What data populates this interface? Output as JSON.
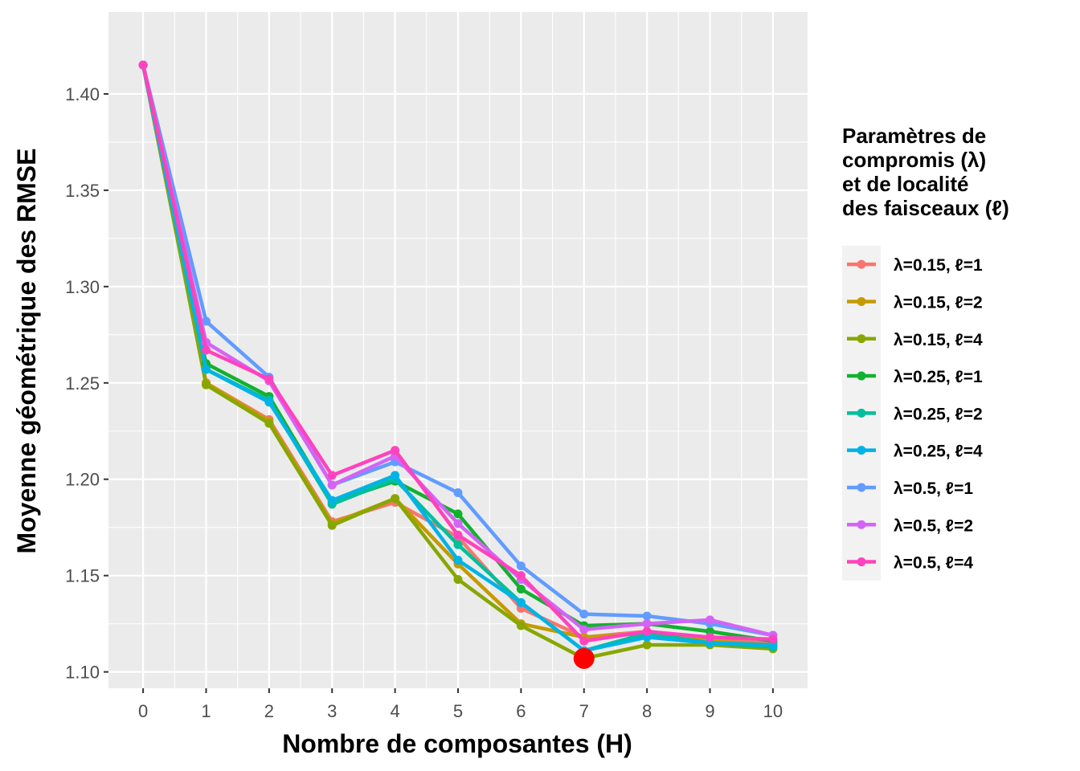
{
  "chart_data": {
    "type": "line",
    "xlabel": "Nombre de composantes (H)",
    "ylabel": "Moyenne géométrique des RMSE",
    "x": [
      0,
      1,
      2,
      3,
      4,
      5,
      6,
      7,
      8,
      9,
      10
    ],
    "xlim": [
      -0.55,
      10.55
    ],
    "ylim": [
      1.0915,
      1.4425
    ],
    "yticks": [
      1.1,
      1.15,
      1.2,
      1.25,
      1.3,
      1.35,
      1.4
    ],
    "ytick_labels": [
      "1.10",
      "1.15",
      "1.20",
      "1.25",
      "1.30",
      "1.35",
      "1.40"
    ],
    "xtick_labels": [
      "0",
      "1",
      "2",
      "3",
      "4",
      "5",
      "6",
      "7",
      "8",
      "9",
      "10"
    ],
    "grid": true,
    "legend": {
      "placement": "right",
      "title_lines": [
        "Paramètres de",
        "compromis (λ)",
        "et de localité",
        "des faisceaux (ℓ)"
      ]
    },
    "highlight": {
      "x": 7,
      "y": 1.107,
      "color": "#ff0000"
    },
    "series": [
      {
        "name": "λ=0.15, ℓ=1",
        "color": "#F8766D",
        "values": [
          1.415,
          1.25,
          1.231,
          1.178,
          1.188,
          1.17,
          1.133,
          1.118,
          1.121,
          1.117,
          1.115
        ]
      },
      {
        "name": "λ=0.15, ℓ=2",
        "color": "#C49A00",
        "values": [
          1.415,
          1.25,
          1.23,
          1.177,
          1.19,
          1.156,
          1.125,
          1.118,
          1.12,
          1.116,
          1.114
        ]
      },
      {
        "name": "λ=0.15, ℓ=4",
        "color": "#87A700",
        "values": [
          1.415,
          1.249,
          1.229,
          1.176,
          1.19,
          1.148,
          1.124,
          1.107,
          1.114,
          1.114,
          1.112
        ]
      },
      {
        "name": "λ=0.25, ℓ=1",
        "color": "#12B12E",
        "values": [
          1.415,
          1.26,
          1.243,
          1.188,
          1.199,
          1.182,
          1.143,
          1.124,
          1.125,
          1.121,
          1.116
        ]
      },
      {
        "name": "λ=0.25, ℓ=2",
        "color": "#00BF9C",
        "values": [
          1.415,
          1.257,
          1.241,
          1.187,
          1.2,
          1.166,
          1.136,
          1.111,
          1.12,
          1.115,
          1.113
        ]
      },
      {
        "name": "λ=0.25, ℓ=4",
        "color": "#00B3E6",
        "values": [
          1.415,
          1.257,
          1.24,
          1.189,
          1.202,
          1.158,
          1.136,
          1.111,
          1.118,
          1.115,
          1.114
        ]
      },
      {
        "name": "λ=0.5, ℓ=1",
        "color": "#619CFF",
        "values": [
          1.415,
          1.282,
          1.253,
          1.197,
          1.209,
          1.193,
          1.155,
          1.13,
          1.129,
          1.125,
          1.119
        ]
      },
      {
        "name": "λ=0.5, ℓ=2",
        "color": "#D364F5",
        "values": [
          1.415,
          1.271,
          1.251,
          1.197,
          1.212,
          1.177,
          1.148,
          1.122,
          1.125,
          1.127,
          1.119
        ]
      },
      {
        "name": "λ=0.5, ℓ=4",
        "color": "#FF42BE",
        "values": [
          1.415,
          1.267,
          1.252,
          1.202,
          1.215,
          1.171,
          1.15,
          1.116,
          1.121,
          1.118,
          1.117
        ]
      }
    ]
  }
}
